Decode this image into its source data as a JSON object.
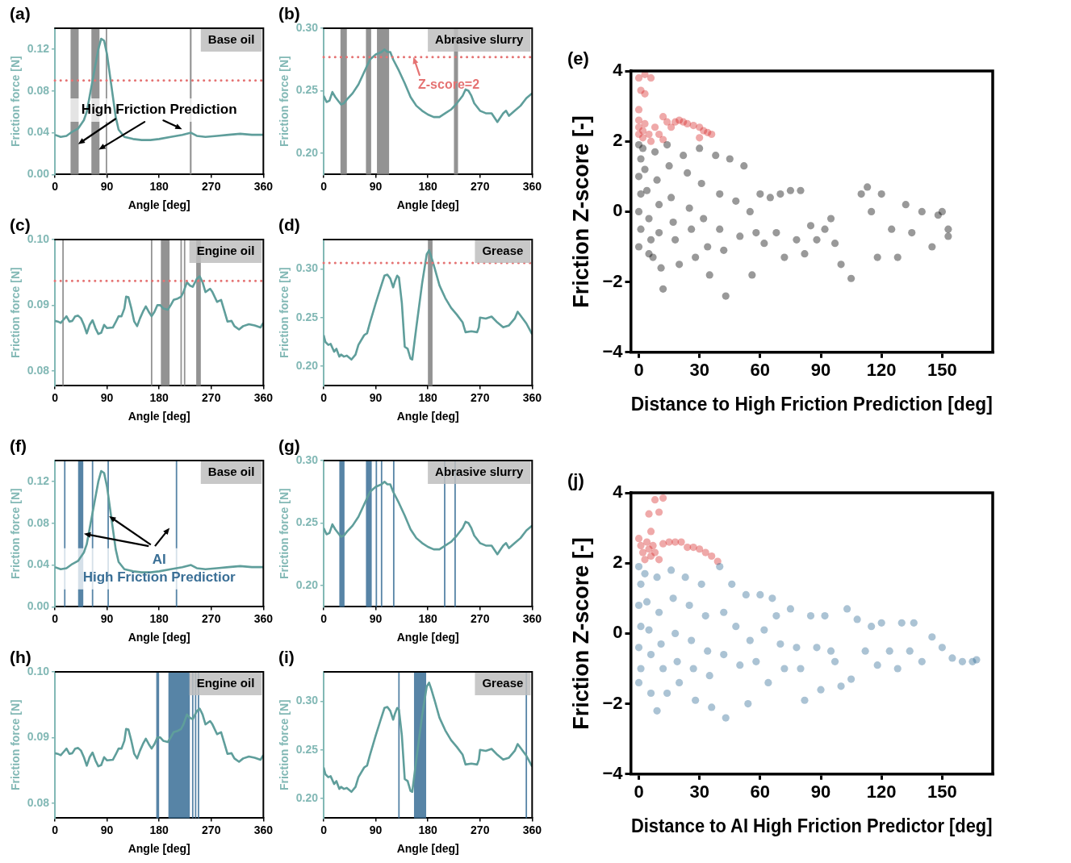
{
  "chart_data": [
    {
      "type": "line",
      "title": "(a)",
      "xlabel": "Angle [deg]",
      "ylabel": "Friction force [N]",
      "xlim": [
        0,
        360
      ],
      "xticks": [
        0,
        90,
        180,
        270,
        360
      ],
      "ylim": [
        0,
        0.14
      ],
      "yticks": [
        {
          "value": 0,
          "label": "0.00"
        },
        {
          "value": 0.04,
          "label": "0.04"
        },
        {
          "value": 0.08,
          "label": "0.08"
        },
        {
          "value": 0.12,
          "label": "0.12"
        }
      ],
      "marker": "none",
      "series": [
        {
          "color": "#5f9e9b",
          "x": [
            0,
            10,
            20,
            30,
            40,
            50,
            55,
            60,
            65,
            70,
            75,
            80,
            85,
            90,
            95,
            100,
            105,
            110,
            120,
            135,
            150,
            165,
            180,
            200,
            220,
            235,
            245,
            260,
            280,
            300,
            320,
            340,
            360
          ],
          "values": [
            0.038,
            0.036,
            0.037,
            0.041,
            0.044,
            0.052,
            0.06,
            0.075,
            0.09,
            0.105,
            0.12,
            0.13,
            0.128,
            0.115,
            0.095,
            0.075,
            0.055,
            0.043,
            0.036,
            0.034,
            0.033,
            0.033,
            0.034,
            0.036,
            0.038,
            0.04,
            0.037,
            0.036,
            0.037,
            0.038,
            0.039,
            0.038,
            0.038
          ]
        }
      ],
      "ref_lines": [
        {
          "axis": "y",
          "value": 0.09,
          "color": "#e57373",
          "line_style": "dotted"
        }
      ],
      "bands": [
        {
          "axis": "x",
          "from": 27,
          "to": 41,
          "color": "#808080"
        },
        {
          "axis": "x",
          "from": 63,
          "to": 77,
          "color": "#808080"
        },
        {
          "axis": "x",
          "from": 88,
          "to": 90,
          "color": "#808080"
        },
        {
          "axis": "x",
          "from": 233,
          "to": 236,
          "color": "#808080"
        }
      ],
      "annotations": [
        "Base oil",
        {
          "text": "High Friction Prediction",
          "x": 40,
          "y": 0.029
        }
      ]
    },
    {
      "type": "line",
      "title": "(b)",
      "xlabel": "Angle [deg]",
      "ylabel": "Friction force [N]",
      "xlim": [
        0,
        360
      ],
      "xticks": [
        0,
        90,
        180,
        270,
        360
      ],
      "ylim": [
        0.183,
        0.3
      ],
      "yticks": [
        {
          "value": 0.2,
          "label": "0.20"
        },
        {
          "value": 0.25,
          "label": "0.25"
        },
        {
          "value": 0.3,
          "label": "0.30"
        }
      ],
      "marker": "none",
      "series": [
        {
          "color": "#5f9e9b",
          "x": [
            0,
            5,
            10,
            15,
            20,
            25,
            30,
            35,
            40,
            50,
            60,
            70,
            80,
            90,
            100,
            105,
            110,
            115,
            120,
            130,
            140,
            150,
            160,
            170,
            180,
            190,
            200,
            210,
            220,
            230,
            240,
            245,
            250,
            255,
            260,
            270,
            280,
            290,
            300,
            310,
            315,
            320,
            330,
            340,
            350,
            360
          ],
          "values": [
            0.246,
            0.241,
            0.242,
            0.249,
            0.245,
            0.242,
            0.239,
            0.24,
            0.243,
            0.248,
            0.255,
            0.265,
            0.275,
            0.279,
            0.281,
            0.283,
            0.281,
            0.281,
            0.275,
            0.266,
            0.256,
            0.245,
            0.238,
            0.234,
            0.231,
            0.229,
            0.229,
            0.232,
            0.235,
            0.24,
            0.246,
            0.251,
            0.25,
            0.246,
            0.24,
            0.234,
            0.232,
            0.232,
            0.225,
            0.232,
            0.234,
            0.23,
            0.234,
            0.238,
            0.244,
            0.248
          ]
        }
      ],
      "ref_lines": [
        {
          "axis": "y",
          "value": 0.277,
          "color": "#e57373",
          "line_style": "dotted"
        }
      ],
      "bands": [
        {
          "axis": "x",
          "from": 29,
          "to": 40,
          "color": "#808080"
        },
        {
          "axis": "x",
          "from": 73,
          "to": 82,
          "color": "#808080"
        },
        {
          "axis": "x",
          "from": 92,
          "to": 113,
          "color": "#808080"
        },
        {
          "axis": "x",
          "from": 225,
          "to": 232,
          "color": "#808080"
        }
      ],
      "annotations": [
        "Abrasive slurry",
        {
          "text": "Z-score=2",
          "x": 155,
          "y": 0.277
        }
      ]
    },
    {
      "type": "line",
      "title": "(c)",
      "xlabel": "Angle [deg]",
      "ylabel": "Friction force [N]",
      "xlim": [
        0,
        360
      ],
      "xticks": [
        0,
        90,
        180,
        270,
        360
      ],
      "ylim": [
        0.0777,
        0.1
      ],
      "yticks": [
        {
          "value": 0.08,
          "label": "0.08"
        },
        {
          "value": 0.09,
          "label": "0.09"
        },
        {
          "value": 0.1,
          "label": "0.10"
        }
      ],
      "marker": "none",
      "series": [
        {
          "color": "#5f9e9b",
          "x": [
            0,
            5,
            10,
            15,
            20,
            25,
            30,
            35,
            40,
            45,
            50,
            55,
            60,
            65,
            70,
            75,
            80,
            85,
            90,
            100,
            105,
            110,
            115,
            120,
            123,
            127,
            132,
            137,
            142,
            147,
            152,
            157,
            162,
            167,
            172,
            177,
            182,
            187,
            195,
            200,
            205,
            212,
            218,
            222,
            228,
            233,
            238,
            245,
            250,
            255,
            260,
            268,
            272,
            280,
            287,
            293,
            298,
            305,
            310,
            318,
            325,
            335,
            345,
            355,
            360
          ],
          "values": [
            0.0876,
            0.0875,
            0.0873,
            0.0878,
            0.0883,
            0.0875,
            0.0876,
            0.0883,
            0.0884,
            0.088,
            0.087,
            0.0857,
            0.087,
            0.0877,
            0.0865,
            0.0856,
            0.0858,
            0.087,
            0.0865,
            0.0866,
            0.0874,
            0.0883,
            0.0883,
            0.0895,
            0.0913,
            0.0912,
            0.0895,
            0.0875,
            0.0868,
            0.088,
            0.089,
            0.0898,
            0.089,
            0.0883,
            0.089,
            0.09,
            0.09,
            0.0895,
            0.0893,
            0.09,
            0.0908,
            0.091,
            0.0913,
            0.092,
            0.0935,
            0.093,
            0.0928,
            0.094,
            0.0944,
            0.0935,
            0.092,
            0.0925,
            0.092,
            0.0905,
            0.0908,
            0.089,
            0.0875,
            0.0876,
            0.0868,
            0.0863,
            0.0868,
            0.0871,
            0.0869,
            0.0866,
            0.0873
          ]
        }
      ],
      "ref_lines": [
        {
          "axis": "y",
          "value": 0.0937,
          "color": "#e57373",
          "line_style": "dotted"
        }
      ],
      "bands": [
        {
          "axis": "x",
          "from": 14,
          "to": 14,
          "color": "#808080"
        },
        {
          "axis": "x",
          "from": 167,
          "to": 167,
          "color": "#808080"
        },
        {
          "axis": "x",
          "from": 183,
          "to": 198,
          "color": "#808080"
        },
        {
          "axis": "x",
          "from": 218,
          "to": 218,
          "color": "#808080"
        },
        {
          "axis": "x",
          "from": 224,
          "to": 224,
          "color": "#808080"
        },
        {
          "axis": "x",
          "from": 244,
          "to": 252,
          "color": "#808080"
        }
      ],
      "annotations": [
        "Engine oil"
      ]
    },
    {
      "type": "line",
      "title": "(d)",
      "xlabel": "Angle [deg]",
      "ylabel": "Friction force [N]",
      "xlim": [
        0,
        360
      ],
      "xticks": [
        0,
        90,
        180,
        270,
        360
      ],
      "ylim": [
        0.18,
        0.33
      ],
      "yticks": [
        {
          "value": 0.2,
          "label": "0.20"
        },
        {
          "value": 0.25,
          "label": "0.25"
        },
        {
          "value": 0.3,
          "label": "0.30"
        }
      ],
      "marker": "none",
      "series": [
        {
          "color": "#5f9e9b",
          "x": [
            0,
            3,
            8,
            12,
            18,
            22,
            27,
            30,
            35,
            40,
            48,
            55,
            60,
            70,
            75,
            80,
            90,
            98,
            105,
            110,
            115,
            120,
            123,
            127,
            130,
            135,
            140,
            145,
            150,
            153,
            160,
            170,
            178,
            182,
            186,
            192,
            200,
            210,
            220,
            230,
            240,
            245,
            255,
            265,
            268,
            270,
            280,
            290,
            300,
            310,
            320,
            330,
            335,
            340,
            350,
            360
          ],
          "values": [
            0.232,
            0.225,
            0.222,
            0.223,
            0.215,
            0.218,
            0.21,
            0.212,
            0.21,
            0.211,
            0.207,
            0.212,
            0.222,
            0.232,
            0.234,
            0.245,
            0.265,
            0.28,
            0.293,
            0.294,
            0.29,
            0.281,
            0.287,
            0.293,
            0.291,
            0.265,
            0.22,
            0.218,
            0.208,
            0.207,
            0.24,
            0.285,
            0.315,
            0.319,
            0.312,
            0.3,
            0.283,
            0.27,
            0.26,
            0.253,
            0.245,
            0.235,
            0.236,
            0.235,
            0.24,
            0.25,
            0.249,
            0.251,
            0.245,
            0.24,
            0.242,
            0.249,
            0.256,
            0.252,
            0.244,
            0.233
          ]
        }
      ],
      "ref_lines": [
        {
          "axis": "y",
          "value": 0.306,
          "color": "#e57373",
          "line_style": "dotted"
        }
      ],
      "bands": [
        {
          "axis": "x",
          "from": 180,
          "to": 188,
          "color": "#808080"
        }
      ],
      "annotations": [
        "Grease"
      ]
    },
    {
      "type": "scatter",
      "title": "(e)",
      "xlabel": "Distance to High Friction Prediction [deg]",
      "ylabel": "Friction Z-score [-]",
      "xlim": [
        -4,
        175
      ],
      "xticks": [
        0,
        30,
        60,
        90,
        120,
        150
      ],
      "ylim": [
        -4,
        4
      ],
      "yticks": [
        {
          "value": -4,
          "label": "−4"
        },
        {
          "value": -2,
          "label": "−2"
        },
        0,
        2,
        4
      ],
      "marker": "circle",
      "series": [
        {
          "color": "#000000",
          "x": [
            0,
            1,
            0,
            1,
            0,
            1,
            0,
            2,
            3,
            4,
            5,
            6,
            5,
            7,
            8,
            9,
            10,
            10,
            11,
            12,
            14,
            15,
            16,
            17,
            18,
            20,
            22,
            24,
            25,
            26,
            28,
            30,
            31,
            32,
            34,
            35,
            38,
            40,
            40,
            42,
            43,
            45,
            48,
            50,
            52,
            55,
            56,
            58,
            60,
            62,
            65,
            68,
            70,
            72,
            75,
            78,
            80,
            82,
            85,
            88,
            92,
            95,
            97,
            100,
            105,
            110,
            113,
            115,
            118,
            120,
            125,
            128,
            132,
            135,
            140,
            145,
            148,
            150,
            153,
            153
          ],
          "values": [
            1.9,
            1.5,
            1.0,
            0.5,
            0,
            -0.5,
            -1.0,
            1.8,
            1.2,
            0.6,
            -0.2,
            -0.8,
            -1.2,
            -1.3,
            1.7,
            0.9,
            0.2,
            -0.6,
            -1.6,
            -2.2,
            1.9,
            1.3,
            0.4,
            -0.3,
            -0.8,
            -1.5,
            1.6,
            1.1,
            0.1,
            -0.5,
            -1.3,
            1.8,
            0.8,
            -0.2,
            -1.0,
            -1.8,
            1.6,
            0.5,
            -0.5,
            -1.1,
            -2.4,
            1.5,
            0.3,
            -0.7,
            1.3,
            0.0,
            -1.8,
            -0.6,
            0.5,
            -0.9,
            0.4,
            -0.6,
            0.5,
            -1.3,
            0.6,
            -0.8,
            0.6,
            -1.2,
            -0.4,
            -0.8,
            -0.5,
            -0.2,
            -0.9,
            -1.5,
            -1.9,
            0.5,
            0.7,
            0.0,
            -1.3,
            0.5,
            -0.5,
            -1.3,
            0.2,
            -0.6,
            0.0,
            -1.0,
            -0.1,
            0.0,
            -0.5,
            -0.7
          ]
        },
        {
          "color": "#d62728",
          "x": [
            0,
            1,
            3,
            6,
            3,
            0,
            0,
            0,
            0,
            2,
            3,
            5,
            6,
            8,
            10,
            12,
            14,
            16,
            18,
            20,
            22,
            24,
            27,
            30,
            32,
            30,
            34,
            36,
            2,
            12
          ],
          "values": [
            3.8,
            3.45,
            3.35,
            3.8,
            3.9,
            2.9,
            2.6,
            2.4,
            2.2,
            2.3,
            2.5,
            2.2,
            2.0,
            2.4,
            2.2,
            2.7,
            2.55,
            2.4,
            2.55,
            2.6,
            2.55,
            2.5,
            2.45,
            2.4,
            2.3,
            2.1,
            2.25,
            2.2,
            2.1,
            2.05
          ]
        }
      ]
    },
    {
      "type": "line",
      "title": "(f)",
      "xlabel": "Angle [deg]",
      "ylabel": "Friction force [N]",
      "xlim": [
        0,
        360
      ],
      "xticks": [
        0,
        90,
        180,
        270,
        360
      ],
      "ylim": [
        0,
        0.14
      ],
      "yticks": [
        {
          "value": 0,
          "label": "0.00"
        },
        {
          "value": 0.04,
          "label": "0.04"
        },
        {
          "value": 0.08,
          "label": "0.08"
        },
        {
          "value": 0.12,
          "label": "0.12"
        }
      ],
      "marker": "none",
      "series": [
        {
          "color": "#5f9e9b",
          "x": [
            0,
            10,
            20,
            30,
            40,
            50,
            55,
            60,
            65,
            70,
            75,
            80,
            85,
            90,
            95,
            100,
            105,
            110,
            120,
            135,
            150,
            165,
            180,
            200,
            220,
            235,
            245,
            260,
            280,
            300,
            320,
            340,
            360
          ],
          "values": [
            0.038,
            0.036,
            0.037,
            0.041,
            0.044,
            0.052,
            0.06,
            0.075,
            0.09,
            0.105,
            0.12,
            0.13,
            0.128,
            0.115,
            0.095,
            0.075,
            0.055,
            0.043,
            0.036,
            0.034,
            0.033,
            0.033,
            0.034,
            0.036,
            0.038,
            0.04,
            0.037,
            0.036,
            0.037,
            0.038,
            0.039,
            0.038,
            0.038
          ]
        }
      ],
      "bands": [
        {
          "axis": "x",
          "from": 17,
          "to": 17,
          "color": "#3a6f96"
        },
        {
          "axis": "x",
          "from": 40,
          "to": 49,
          "color": "#3a6f96"
        },
        {
          "axis": "x",
          "from": 65,
          "to": 65,
          "color": "#3a6f96"
        },
        {
          "axis": "x",
          "from": 92,
          "to": 92,
          "color": "#3a6f96"
        },
        {
          "axis": "x",
          "from": 210,
          "to": 210,
          "color": "#3a6f96"
        }
      ],
      "annotations": [
        "Base oil",
        {
          "text": "AI",
          "x": 50,
          "y": 0.07
        },
        "High Friction Predictior"
      ]
    },
    {
      "type": "line",
      "title": "(g)",
      "xlabel": "Angle [deg]",
      "ylabel": "Friction force [N]",
      "xlim": [
        0,
        360
      ],
      "xticks": [
        0,
        90,
        180,
        270,
        360
      ],
      "ylim": [
        0.183,
        0.3
      ],
      "yticks": [
        {
          "value": 0.2,
          "label": "0.20"
        },
        {
          "value": 0.25,
          "label": "0.25"
        },
        {
          "value": 0.3,
          "label": "0.30"
        }
      ],
      "marker": "none",
      "series": [
        {
          "color": "#5f9e9b",
          "x": [
            0,
            5,
            10,
            15,
            20,
            25,
            30,
            35,
            40,
            50,
            60,
            70,
            80,
            90,
            100,
            105,
            110,
            115,
            120,
            130,
            140,
            150,
            160,
            170,
            180,
            190,
            200,
            210,
            220,
            230,
            240,
            245,
            250,
            255,
            260,
            270,
            280,
            290,
            300,
            310,
            315,
            320,
            330,
            340,
            350,
            360
          ],
          "values": [
            0.246,
            0.241,
            0.242,
            0.249,
            0.245,
            0.242,
            0.239,
            0.24,
            0.243,
            0.248,
            0.255,
            0.265,
            0.275,
            0.279,
            0.281,
            0.283,
            0.281,
            0.281,
            0.275,
            0.266,
            0.256,
            0.245,
            0.238,
            0.234,
            0.231,
            0.229,
            0.229,
            0.232,
            0.235,
            0.24,
            0.246,
            0.251,
            0.25,
            0.246,
            0.24,
            0.234,
            0.232,
            0.232,
            0.225,
            0.232,
            0.234,
            0.23,
            0.234,
            0.238,
            0.244,
            0.248
          ]
        }
      ],
      "bands": [
        {
          "axis": "x",
          "from": 27,
          "to": 36,
          "color": "#3a6f96"
        },
        {
          "axis": "x",
          "from": 73,
          "to": 83,
          "color": "#3a6f96"
        },
        {
          "axis": "x",
          "from": 91,
          "to": 91,
          "color": "#3a6f96"
        },
        {
          "axis": "x",
          "from": 100,
          "to": 100,
          "color": "#3a6f96"
        },
        {
          "axis": "x",
          "from": 121,
          "to": 121,
          "color": "#3a6f96"
        },
        {
          "axis": "x",
          "from": 209,
          "to": 209,
          "color": "#3a6f96"
        },
        {
          "axis": "x",
          "from": 227,
          "to": 227,
          "color": "#3a6f96"
        }
      ],
      "annotations": [
        "Abrasive slurry"
      ]
    },
    {
      "type": "line",
      "title": "(h)",
      "xlabel": "Angle [deg]",
      "ylabel": "Friction force [N]",
      "xlim": [
        0,
        360
      ],
      "xticks": [
        0,
        90,
        180,
        270,
        360
      ],
      "ylim": [
        0.0777,
        0.1
      ],
      "yticks": [
        {
          "value": 0.08,
          "label": "0.08"
        },
        {
          "value": 0.09,
          "label": "0.09"
        },
        {
          "value": 0.1,
          "label": "0.10"
        }
      ],
      "marker": "none",
      "series": [
        {
          "color": "#5f9e9b",
          "x": [
            0,
            5,
            10,
            15,
            20,
            25,
            30,
            35,
            40,
            45,
            50,
            55,
            60,
            65,
            70,
            75,
            80,
            85,
            90,
            100,
            105,
            110,
            115,
            120,
            123,
            127,
            132,
            137,
            142,
            147,
            152,
            157,
            162,
            167,
            172,
            177,
            182,
            187,
            195,
            200,
            205,
            212,
            218,
            222,
            228,
            233,
            238,
            245,
            250,
            255,
            260,
            268,
            272,
            280,
            287,
            293,
            298,
            305,
            310,
            318,
            325,
            335,
            345,
            355,
            360
          ],
          "values": [
            0.0876,
            0.0875,
            0.0873,
            0.0878,
            0.0883,
            0.0875,
            0.0876,
            0.0883,
            0.0884,
            0.088,
            0.087,
            0.0857,
            0.087,
            0.0877,
            0.0865,
            0.0856,
            0.0858,
            0.087,
            0.0865,
            0.0866,
            0.0874,
            0.0883,
            0.0883,
            0.0895,
            0.0913,
            0.0912,
            0.0895,
            0.0875,
            0.0868,
            0.088,
            0.089,
            0.0898,
            0.089,
            0.0883,
            0.089,
            0.09,
            0.09,
            0.0895,
            0.0893,
            0.09,
            0.0908,
            0.091,
            0.0913,
            0.092,
            0.0935,
            0.093,
            0.0928,
            0.094,
            0.0944,
            0.0935,
            0.092,
            0.0925,
            0.092,
            0.0905,
            0.0908,
            0.089,
            0.0875,
            0.0876,
            0.0868,
            0.0863,
            0.0868,
            0.0871,
            0.0869,
            0.0866,
            0.0873
          ]
        }
      ],
      "bands": [
        {
          "axis": "x",
          "from": 175,
          "to": 180,
          "color": "#3a6f96"
        },
        {
          "axis": "x",
          "from": 196,
          "to": 233,
          "color": "#3a6f96"
        },
        {
          "axis": "x",
          "from": 238,
          "to": 238,
          "color": "#3a6f96"
        },
        {
          "axis": "x",
          "from": 243,
          "to": 243,
          "color": "#3a6f96"
        },
        {
          "axis": "x",
          "from": 248,
          "to": 248,
          "color": "#3a6f96"
        }
      ],
      "annotations": [
        "Engine oil"
      ]
    },
    {
      "type": "line",
      "title": "(i)",
      "xlabel": "Angle [deg]",
      "ylabel": "Friction force [N]",
      "xlim": [
        0,
        360
      ],
      "xticks": [
        0,
        90,
        180,
        270,
        360
      ],
      "ylim": [
        0.18,
        0.33
      ],
      "yticks": [
        {
          "value": 0.2,
          "label": "0.20"
        },
        {
          "value": 0.25,
          "label": "0.25"
        },
        {
          "value": 0.3,
          "label": "0.30"
        }
      ],
      "marker": "none",
      "series": [
        {
          "color": "#5f9e9b",
          "x": [
            0,
            3,
            8,
            12,
            18,
            22,
            27,
            30,
            35,
            40,
            48,
            55,
            60,
            70,
            75,
            80,
            90,
            98,
            105,
            110,
            115,
            120,
            123,
            127,
            130,
            135,
            140,
            145,
            150,
            153,
            160,
            170,
            178,
            182,
            186,
            192,
            200,
            210,
            220,
            230,
            240,
            245,
            255,
            265,
            268,
            270,
            280,
            290,
            300,
            310,
            320,
            330,
            335,
            340,
            350,
            360
          ],
          "values": [
            0.232,
            0.225,
            0.222,
            0.223,
            0.215,
            0.218,
            0.21,
            0.212,
            0.21,
            0.211,
            0.207,
            0.212,
            0.222,
            0.232,
            0.234,
            0.245,
            0.265,
            0.28,
            0.293,
            0.294,
            0.29,
            0.281,
            0.287,
            0.293,
            0.291,
            0.265,
            0.22,
            0.218,
            0.208,
            0.207,
            0.24,
            0.285,
            0.315,
            0.319,
            0.312,
            0.3,
            0.283,
            0.27,
            0.26,
            0.253,
            0.245,
            0.235,
            0.236,
            0.235,
            0.24,
            0.25,
            0.249,
            0.251,
            0.245,
            0.24,
            0.242,
            0.249,
            0.256,
            0.252,
            0.244,
            0.233
          ]
        }
      ],
      "bands": [
        {
          "axis": "x",
          "from": 130,
          "to": 130,
          "color": "#3a6f96"
        },
        {
          "axis": "x",
          "from": 156,
          "to": 177,
          "color": "#3a6f96"
        },
        {
          "axis": "x",
          "from": 350,
          "to": 350,
          "color": "#3a6f96"
        }
      ],
      "annotations": [
        "Grease"
      ]
    },
    {
      "type": "scatter",
      "title": "(j)",
      "xlabel": "Distance to AI High Friction Predictor [deg]",
      "ylabel": "Friction Z-score [-]",
      "xlim": [
        -4,
        175
      ],
      "xticks": [
        0,
        30,
        60,
        90,
        120,
        150
      ],
      "ylim": [
        -4,
        4
      ],
      "yticks": [
        {
          "value": -4,
          "label": "−4"
        },
        {
          "value": -2,
          "label": "−2"
        },
        0,
        2,
        4
      ],
      "marker": "circle",
      "series": [
        {
          "color": "#2e6a94",
          "x": [
            0,
            1,
            0,
            1,
            0,
            1,
            0,
            3,
            4,
            5,
            6,
            6,
            9,
            9,
            10,
            11,
            12,
            14,
            16,
            17,
            18,
            19,
            20,
            23,
            25,
            26,
            27,
            28,
            31,
            33,
            34,
            35,
            36,
            40,
            42,
            42,
            43,
            46,
            48,
            50,
            53,
            55,
            54,
            58,
            60,
            62,
            64,
            66,
            68,
            70,
            72,
            75,
            78,
            80,
            82,
            85,
            88,
            90,
            92,
            95,
            97,
            100,
            103,
            105,
            108,
            112,
            115,
            118,
            120,
            124,
            128,
            130,
            134,
            136,
            140,
            145,
            150,
            155,
            160,
            165,
            167
          ],
          "values": [
            1.9,
            1.4,
            0.8,
            0.2,
            -0.4,
            -1.0,
            -1.4,
            1.7,
            0.9,
            0.1,
            -0.6,
            -1.7,
            -2.2,
            1.6,
            0.6,
            -0.3,
            -1.0,
            -1.7,
            1.8,
            1.0,
            0.0,
            -0.8,
            -1.4,
            1.6,
            0.8,
            -0.2,
            -1.0,
            -1.9,
            1.4,
            0.5,
            -0.5,
            -1.2,
            -2.1,
            1.9,
            0.6,
            -0.6,
            -2.4,
            1.4,
            0.2,
            -0.9,
            1.1,
            -0.2,
            -2.0,
            -0.8,
            1.1,
            0.1,
            -1.4,
            1.0,
            0.5,
            -0.3,
            -1.0,
            0.7,
            -0.4,
            -1.0,
            -1.9,
            0.5,
            -0.4,
            -1.6,
            0.5,
            -0.5,
            -0.8,
            -1.5,
            0.7,
            -1.3,
            0.4,
            -0.5,
            0.2,
            -0.9,
            0.3,
            -0.5,
            -1.0,
            0.3,
            -0.5,
            0.3,
            -0.8,
            -0.1,
            -0.4,
            -0.7,
            -0.8,
            -0.8,
            -0.75
          ]
        },
        {
          "color": "#d62728",
          "x": [
            12,
            8,
            10,
            5,
            6,
            0,
            1,
            2,
            3,
            4,
            5,
            6,
            7,
            8,
            10,
            12,
            15,
            18,
            21,
            24,
            27,
            30,
            33,
            36,
            39
          ],
          "values": [
            3.85,
            3.8,
            3.45,
            3.4,
            2.9,
            2.7,
            2.5,
            2.3,
            2.1,
            2.6,
            2.4,
            2.2,
            2.5,
            2.3,
            2.1,
            2.55,
            2.6,
            2.6,
            2.6,
            2.45,
            2.45,
            2.4,
            2.3,
            2.2,
            2.05
          ]
        }
      ]
    }
  ]
}
